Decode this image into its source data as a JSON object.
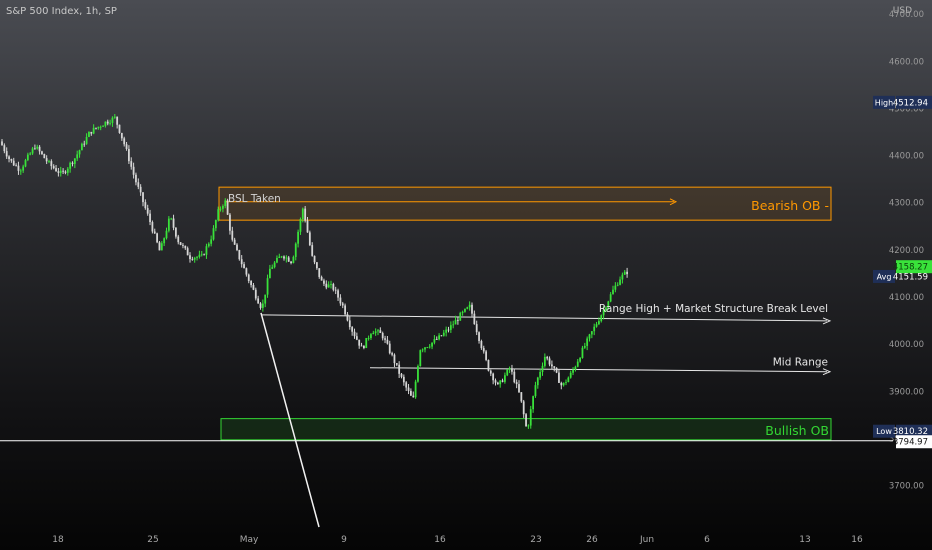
{
  "header": {
    "symbol": "S&P 500 Index",
    "interval": "1h",
    "exchange": "SP",
    "currency": "USD"
  },
  "colors": {
    "bull": "#39e23a",
    "bear": "#d6d6d6",
    "bearish_ob": "#ff9800",
    "bullish_ob": "#33d633",
    "line": "#e6e6e6",
    "label_bg": "#1f2f57"
  },
  "chart_data": {
    "type": "candlestick",
    "ylim": [
      3610,
      4730
    ],
    "y_ticks": [
      "4700.00",
      "4600.00",
      "4500.00",
      "4400.00",
      "4300.00",
      "4200.00",
      "4100.00",
      "4000.00",
      "3900.00",
      "3800.00",
      "3700.00"
    ],
    "x_ticks": [
      "18",
      "25",
      "May",
      "9",
      "16",
      "23",
      "26",
      "Jun",
      "6",
      "13",
      "16"
    ],
    "price_path": [
      [
        0,
        4430
      ],
      [
        10,
        4390
      ],
      [
        20,
        4370
      ],
      [
        35,
        4420
      ],
      [
        50,
        4380
      ],
      [
        62,
        4360
      ],
      [
        75,
        4395
      ],
      [
        90,
        4450
      ],
      [
        105,
        4470
      ],
      [
        115,
        4480
      ],
      [
        125,
        4420
      ],
      [
        135,
        4350
      ],
      [
        150,
        4260
      ],
      [
        160,
        4195
      ],
      [
        170,
        4270
      ],
      [
        178,
        4220
      ],
      [
        190,
        4185
      ],
      [
        202,
        4185
      ],
      [
        212,
        4230
      ],
      [
        218,
        4280
      ],
      [
        225,
        4305
      ],
      [
        232,
        4220
      ],
      [
        242,
        4170
      ],
      [
        252,
        4120
      ],
      [
        262,
        4075
      ],
      [
        270,
        4160
      ],
      [
        282,
        4190
      ],
      [
        292,
        4175
      ],
      [
        303,
        4290
      ],
      [
        312,
        4185
      ],
      [
        322,
        4130
      ],
      [
        333,
        4120
      ],
      [
        343,
        4080
      ],
      [
        352,
        4030
      ],
      [
        362,
        3990
      ],
      [
        372,
        4030
      ],
      [
        382,
        4020
      ],
      [
        393,
        3970
      ],
      [
        403,
        3920
      ],
      [
        413,
        3880
      ],
      [
        420,
        3990
      ],
      [
        430,
        4000
      ],
      [
        440,
        4015
      ],
      [
        450,
        4035
      ],
      [
        460,
        4060
      ],
      [
        470,
        4080
      ],
      [
        478,
        4020
      ],
      [
        488,
        3950
      ],
      [
        498,
        3910
      ],
      [
        510,
        3950
      ],
      [
        520,
        3890
      ],
      [
        527,
        3815
      ],
      [
        535,
        3910
      ],
      [
        545,
        3975
      ],
      [
        553,
        3950
      ],
      [
        562,
        3910
      ],
      [
        572,
        3940
      ],
      [
        582,
        3985
      ],
      [
        593,
        4030
      ],
      [
        603,
        4070
      ],
      [
        612,
        4110
      ],
      [
        620,
        4140
      ],
      [
        628,
        4155
      ]
    ],
    "last_price": 4158.27,
    "avg_price": 4151.59,
    "high": 4512.94,
    "low": 3810.32,
    "reference_level": 3794.97,
    "annotations": {
      "bsl_taken": "BSL Taken",
      "bearish_ob": "Bearish OB -",
      "range_high": "Range High + Market Structure Break Level",
      "mid_range": "Mid Range",
      "bullish_ob": "Bullish OB"
    },
    "levels": {
      "bsl": 4302,
      "bearish_ob_top": 4333,
      "bearish_ob_bottom": 4263,
      "range_high": 4062,
      "mid_range": 3950,
      "bullish_ob_top": 3842,
      "bullish_ob_bottom": 3797
    },
    "price_labels": {
      "high": "High",
      "avg": "Avg",
      "low": "Low"
    },
    "grid": false,
    "legend": "none"
  }
}
